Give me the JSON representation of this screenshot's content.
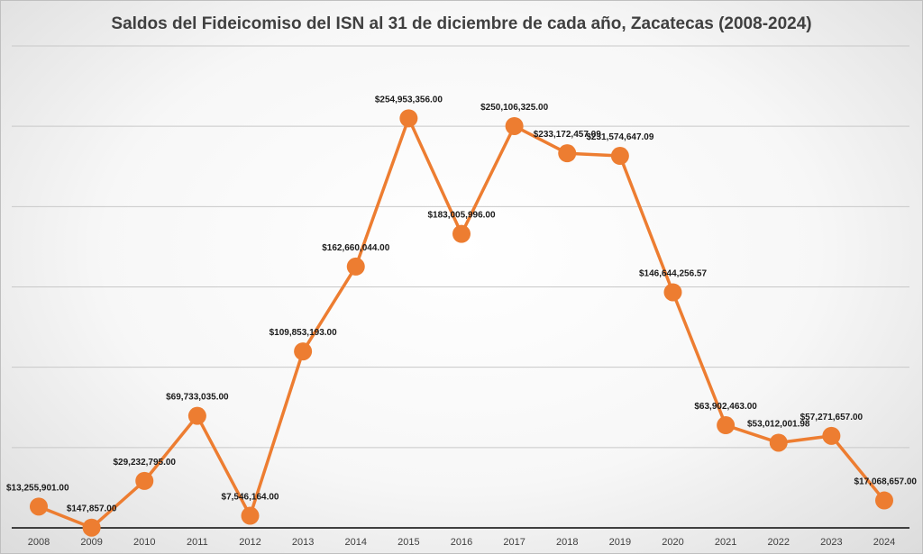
{
  "chart_data": {
    "type": "line",
    "title": "Saldos del Fideicomiso del ISN al 31 de diciembre de cada año, Zacatecas (2008-2024)",
    "xlabel": "",
    "ylabel": "",
    "categories": [
      "2008",
      "2009",
      "2010",
      "2011",
      "2012",
      "2013",
      "2014",
      "2015",
      "2016",
      "2017",
      "2018",
      "2019",
      "2020",
      "2021",
      "2022",
      "2023",
      "2024"
    ],
    "series": [
      {
        "values": [
          13255901.0,
          147857.0,
          29232795.0,
          69733035.0,
          7546164.0,
          109853193.0,
          162660044.0,
          254953356.0,
          183005996.0,
          250106325.0,
          233172457.09,
          231574647.09,
          146644256.57,
          63902463.0,
          53012001.98,
          57271657.0,
          17068657.0
        ],
        "labels": [
          "$13,255,901.00",
          "$147,857.00",
          "$29,232,795.00",
          "$69,733,035.00",
          "$7,546,164.00",
          "$109,853,193.00",
          "$162,660,044.00",
          "$254,953,356.00",
          "$183,005,996.00",
          "$250,106,325.00",
          "$233,172,457.09",
          "$231,574,647.09",
          "$146,644,256.57",
          "$63,902,463.00",
          "$53,012,001.98",
          "$57,271,657.00",
          "$17,068,657.00"
        ],
        "color": "#ed7d31"
      }
    ],
    "ylim": [
      0,
      300000000
    ],
    "y_gridlines": [
      50000000,
      100000000,
      150000000,
      200000000,
      250000000,
      300000000
    ],
    "grid": true,
    "legend": "none"
  }
}
